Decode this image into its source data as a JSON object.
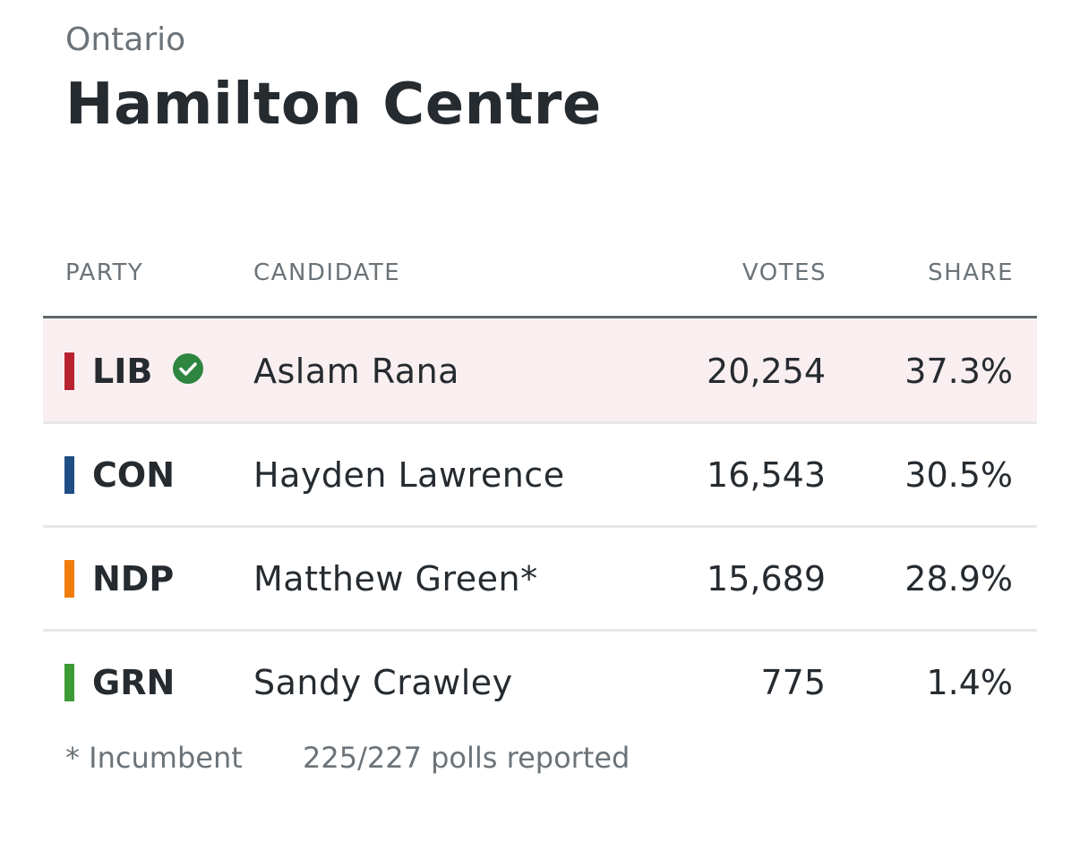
{
  "header": {
    "region": "Ontario",
    "title": "Hamilton Centre"
  },
  "table": {
    "columns": [
      "PARTY",
      "CANDIDATE",
      "VOTES",
      "SHARE"
    ],
    "rows": [
      {
        "party": "LIB",
        "color": "#b8232f",
        "winner": true,
        "candidate": "Aslam Rana",
        "votes": "20,254",
        "share": "37.3%"
      },
      {
        "party": "CON",
        "color": "#1f4e85",
        "winner": false,
        "candidate": "Hayden Lawrence",
        "votes": "16,543",
        "share": "30.5%"
      },
      {
        "party": "NDP",
        "color": "#f07d0b",
        "winner": false,
        "candidate": "Matthew Green*",
        "votes": "15,689",
        "share": "28.9%"
      },
      {
        "party": "GRN",
        "color": "#3d9b35",
        "winner": false,
        "candidate": "Sandy Crawley",
        "votes": "775",
        "share": "1.4%"
      }
    ]
  },
  "footer": {
    "note": "* Incumbent",
    "status": "225/227 polls reported"
  }
}
